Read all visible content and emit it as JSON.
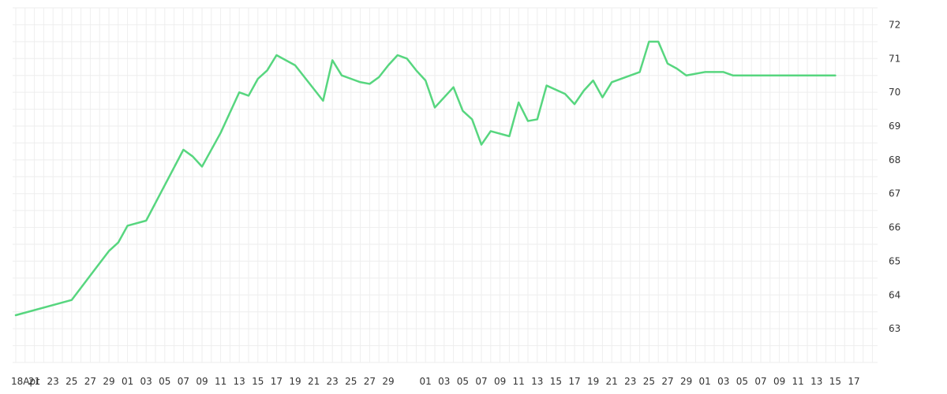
{
  "chart_data": {
    "type": "line",
    "title": "",
    "xlabel": "",
    "ylabel": "",
    "grid": true,
    "ylim": [
      62,
      72.5
    ],
    "y_ticks": [
      63,
      64,
      65,
      66,
      67,
      68,
      69,
      70,
      71,
      72
    ],
    "x_tick_labels": [
      "18Apr",
      "21",
      "23",
      "25",
      "27",
      "29",
      "01",
      "03",
      "05",
      "07",
      "09",
      "11",
      "13",
      "15",
      "17",
      "19",
      "21",
      "23",
      "25",
      "27",
      "29",
      "",
      "01",
      "03",
      "05",
      "07",
      "09",
      "11",
      "13",
      "15",
      "17",
      "19",
      "21",
      "23",
      "25",
      "27",
      "29",
      "01",
      "03",
      "05",
      "07",
      "09",
      "11",
      "13",
      "15",
      "17"
    ],
    "colors": {
      "series": "#57d67f",
      "grid": "#eeeeee",
      "text": "#333333"
    },
    "series": [
      {
        "x": [
          0,
          6,
          10,
          11,
          12,
          14,
          18,
          19,
          20,
          22,
          24,
          25,
          26,
          27,
          28,
          30,
          33,
          34,
          35,
          36,
          37,
          38,
          39,
          40,
          41,
          42,
          43,
          44,
          45,
          47,
          48,
          49,
          50,
          51,
          53,
          54,
          55,
          56,
          57,
          59,
          60,
          61,
          62,
          63,
          64,
          67,
          68,
          69,
          70,
          71,
          72,
          74,
          76,
          77,
          78,
          79,
          80,
          81,
          82,
          83,
          85,
          86,
          87,
          88
        ],
        "y": [
          63.4,
          63.85,
          65.3,
          65.55,
          66.05,
          66.2,
          68.3,
          68.1,
          67.8,
          68.8,
          70.0,
          69.9,
          70.4,
          70.65,
          71.1,
          70.8,
          69.75,
          70.95,
          70.5,
          70.4,
          70.3,
          70.25,
          70.45,
          70.8,
          71.1,
          71.0,
          70.65,
          70.35,
          69.55,
          70.15,
          69.45,
          69.2,
          68.45,
          68.85,
          68.7,
          69.7,
          69.15,
          69.2,
          70.2,
          69.95,
          69.65,
          70.05,
          70.35,
          69.85,
          70.3,
          70.6,
          71.5,
          71.5,
          70.85,
          70.7,
          70.5,
          70.6,
          70.6,
          70.5,
          70.5,
          70.5,
          70.5,
          70.5,
          70.5,
          70.5,
          70.5,
          70.5,
          70.5,
          70.5
        ]
      }
    ]
  }
}
